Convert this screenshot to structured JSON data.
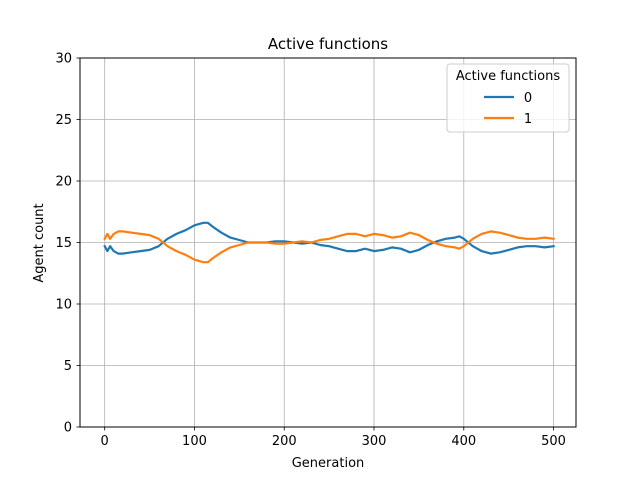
{
  "chart_data": {
    "type": "line",
    "title": "Active functions",
    "xlabel": "Generation",
    "ylabel": "Agent count",
    "xlim": [
      -27.5,
      525
    ],
    "ylim": [
      0,
      30
    ],
    "xticks": [
      0,
      100,
      200,
      300,
      400,
      500
    ],
    "yticks": [
      0,
      5,
      10,
      15,
      20,
      25,
      30
    ],
    "grid": true,
    "legend": {
      "title": "Active functions",
      "position": "top-right"
    },
    "series": [
      {
        "name": "0",
        "color": "#1f77b4",
        "x": [
          0,
          3,
          6,
          10,
          15,
          20,
          30,
          40,
          50,
          60,
          70,
          80,
          90,
          100,
          110,
          115,
          120,
          130,
          140,
          150,
          160,
          170,
          180,
          190,
          200,
          210,
          220,
          230,
          240,
          250,
          260,
          270,
          280,
          290,
          300,
          310,
          320,
          330,
          340,
          350,
          360,
          370,
          380,
          390,
          395,
          400,
          410,
          420,
          430,
          440,
          450,
          460,
          470,
          480,
          490,
          500
        ],
        "y": [
          14.7,
          14.3,
          14.7,
          14.3,
          14.1,
          14.1,
          14.2,
          14.3,
          14.4,
          14.7,
          15.3,
          15.7,
          16.0,
          16.4,
          16.6,
          16.6,
          16.3,
          15.8,
          15.4,
          15.2,
          15.0,
          15.0,
          15.0,
          15.1,
          15.1,
          15.0,
          14.9,
          15.0,
          14.8,
          14.7,
          14.5,
          14.3,
          14.3,
          14.5,
          14.3,
          14.4,
          14.6,
          14.5,
          14.2,
          14.4,
          14.8,
          15.1,
          15.3,
          15.4,
          15.5,
          15.3,
          14.7,
          14.3,
          14.1,
          14.2,
          14.4,
          14.6,
          14.7,
          14.7,
          14.6,
          14.7
        ]
      },
      {
        "name": "1",
        "color": "#ff7f0e",
        "x": [
          0,
          3,
          6,
          10,
          15,
          20,
          30,
          40,
          50,
          60,
          70,
          80,
          90,
          100,
          110,
          115,
          120,
          130,
          140,
          150,
          160,
          170,
          180,
          190,
          200,
          210,
          220,
          230,
          240,
          250,
          260,
          270,
          280,
          290,
          300,
          310,
          320,
          330,
          340,
          350,
          360,
          370,
          380,
          390,
          395,
          400,
          410,
          420,
          430,
          440,
          450,
          460,
          470,
          480,
          490,
          500
        ],
        "y": [
          15.3,
          15.7,
          15.3,
          15.7,
          15.9,
          15.9,
          15.8,
          15.7,
          15.6,
          15.3,
          14.7,
          14.3,
          14.0,
          13.6,
          13.4,
          13.4,
          13.7,
          14.2,
          14.6,
          14.8,
          15.0,
          15.0,
          15.0,
          14.9,
          14.9,
          15.0,
          15.1,
          15.0,
          15.2,
          15.3,
          15.5,
          15.7,
          15.7,
          15.5,
          15.7,
          15.6,
          15.4,
          15.5,
          15.8,
          15.6,
          15.2,
          14.9,
          14.7,
          14.6,
          14.5,
          14.7,
          15.3,
          15.7,
          15.9,
          15.8,
          15.6,
          15.4,
          15.3,
          15.3,
          15.4,
          15.3
        ]
      }
    ]
  }
}
